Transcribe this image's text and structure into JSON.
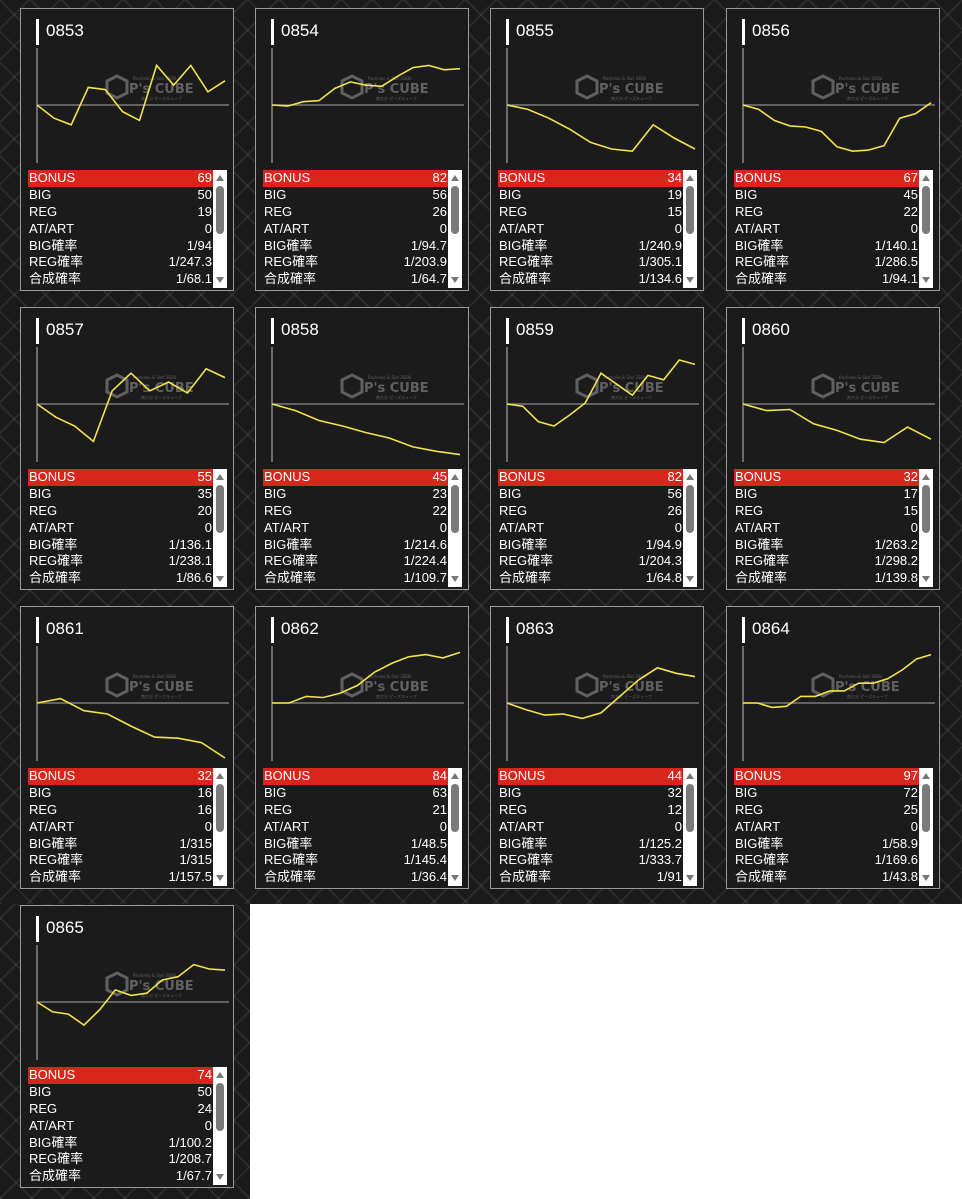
{
  "labels": {
    "bonus": "BONUS",
    "big": "BIG",
    "reg": "REG",
    "at": "AT/ART",
    "big_rate": "BIG確率",
    "reg_rate": "REG確率",
    "total_rate": "合成確率"
  },
  "watermark": {
    "brand": "P's CUBE",
    "line1": "Pachinko & Slot 3SEN",
    "line2": "南大分 ピーズキューブ"
  },
  "colors": {
    "line": "#f2e34b",
    "bonus_bg": "#d9261c",
    "card_bg": "#1b1b1b"
  },
  "machines": [
    {
      "id": "0853",
      "bonus": "69",
      "big": "50",
      "reg": "19",
      "at": "0",
      "big_rate": "1/94",
      "reg_rate": "1/247.3",
      "total_rate": "1/68.1",
      "trend": [
        0,
        -0.6,
        -0.9,
        0.8,
        0.7,
        -0.3,
        -0.7,
        1.8,
        0.9,
        1.8,
        0.6,
        1.1
      ]
    },
    {
      "id": "0854",
      "bonus": "82",
      "big": "56",
      "reg": "26",
      "at": "0",
      "big_rate": "1/94.7",
      "reg_rate": "1/203.9",
      "total_rate": "1/64.7",
      "trend": [
        0,
        -0.05,
        0.15,
        0.2,
        0.75,
        1.05,
        0.9,
        0.85,
        1.3,
        1.7,
        1.8,
        1.6,
        1.65
      ]
    },
    {
      "id": "0855",
      "bonus": "34",
      "big": "19",
      "reg": "15",
      "at": "0",
      "big_rate": "1/240.9",
      "reg_rate": "1/305.1",
      "total_rate": "1/134.6",
      "trend": [
        0,
        -0.2,
        -0.6,
        -1.1,
        -1.7,
        -2.0,
        -2.1,
        -0.9,
        -1.5,
        -2.0
      ]
    },
    {
      "id": "0856",
      "bonus": "67",
      "big": "45",
      "reg": "22",
      "at": "0",
      "big_rate": "1/140.1",
      "reg_rate": "1/286.5",
      "total_rate": "1/94.1",
      "trend": [
        0,
        -0.2,
        -0.7,
        -0.95,
        -1.0,
        -1.2,
        -1.9,
        -2.1,
        -2.05,
        -1.85,
        -0.6,
        -0.4,
        0.1
      ]
    },
    {
      "id": "0857",
      "bonus": "55",
      "big": "35",
      "reg": "20",
      "at": "0",
      "big_rate": "1/136.1",
      "reg_rate": "1/238.1",
      "total_rate": "1/86.6",
      "trend": [
        0,
        -0.6,
        -1.0,
        -1.7,
        0.6,
        1.4,
        0.6,
        1.0,
        0.5,
        1.6,
        1.2
      ]
    },
    {
      "id": "0858",
      "bonus": "45",
      "big": "23",
      "reg": "22",
      "at": "0",
      "big_rate": "1/214.6",
      "reg_rate": "1/224.4",
      "total_rate": "1/109.7",
      "trend": [
        0,
        -0.3,
        -0.75,
        -1.0,
        -1.3,
        -1.55,
        -1.95,
        -2.15,
        -2.3
      ]
    },
    {
      "id": "0859",
      "bonus": "82",
      "big": "56",
      "reg": "26",
      "at": "0",
      "big_rate": "1/94.9",
      "reg_rate": "1/204.3",
      "total_rate": "1/64.8",
      "trend": [
        0,
        -0.1,
        -0.8,
        -1.0,
        -0.5,
        0.05,
        1.4,
        0.9,
        0.4,
        1.3,
        1.1,
        2.0,
        1.8
      ]
    },
    {
      "id": "0860",
      "bonus": "32",
      "big": "17",
      "reg": "15",
      "at": "0",
      "big_rate": "1/263.2",
      "reg_rate": "1/298.2",
      "total_rate": "1/139.8",
      "trend": [
        0,
        -0.3,
        -0.25,
        -0.9,
        -1.2,
        -1.6,
        -1.75,
        -1.05,
        -1.6
      ]
    },
    {
      "id": "0861",
      "bonus": "32",
      "big": "16",
      "reg": "16",
      "at": "0",
      "big_rate": "1/315",
      "reg_rate": "1/315",
      "total_rate": "1/157.5",
      "trend": [
        0,
        0.2,
        -0.35,
        -0.5,
        -1.05,
        -1.55,
        -1.6,
        -1.8,
        -2.5
      ]
    },
    {
      "id": "0862",
      "bonus": "84",
      "big": "63",
      "reg": "21",
      "at": "0",
      "big_rate": "1/48.5",
      "reg_rate": "1/145.4",
      "total_rate": "1/36.4",
      "trend": [
        0,
        0,
        0.3,
        0.25,
        0.45,
        0.8,
        1.4,
        1.8,
        2.1,
        2.2,
        2.05,
        2.3
      ]
    },
    {
      "id": "0863",
      "bonus": "44",
      "big": "32",
      "reg": "12",
      "at": "0",
      "big_rate": "1/125.2",
      "reg_rate": "1/333.7",
      "total_rate": "1/91",
      "trend": [
        0,
        -0.3,
        -0.55,
        -0.5,
        -0.7,
        -0.45,
        0.3,
        1.05,
        1.6,
        1.35,
        1.2
      ]
    },
    {
      "id": "0864",
      "bonus": "97",
      "big": "72",
      "reg": "25",
      "at": "0",
      "big_rate": "1/58.9",
      "reg_rate": "1/169.6",
      "total_rate": "1/43.8",
      "trend": [
        0,
        0,
        -0.2,
        -0.15,
        0.3,
        0.3,
        0.55,
        0.55,
        0.9,
        0.9,
        1.1,
        1.5,
        2.0,
        2.2
      ]
    },
    {
      "id": "0865",
      "bonus": "74",
      "big": "50",
      "reg": "24",
      "at": "0",
      "big_rate": "1/100.2",
      "reg_rate": "1/208.7",
      "total_rate": "1/67.7",
      "trend": [
        0,
        -0.45,
        -0.55,
        -1.05,
        -0.35,
        0.55,
        0.3,
        0.4,
        1.0,
        1.15,
        1.7,
        1.5,
        1.45
      ]
    }
  ]
}
